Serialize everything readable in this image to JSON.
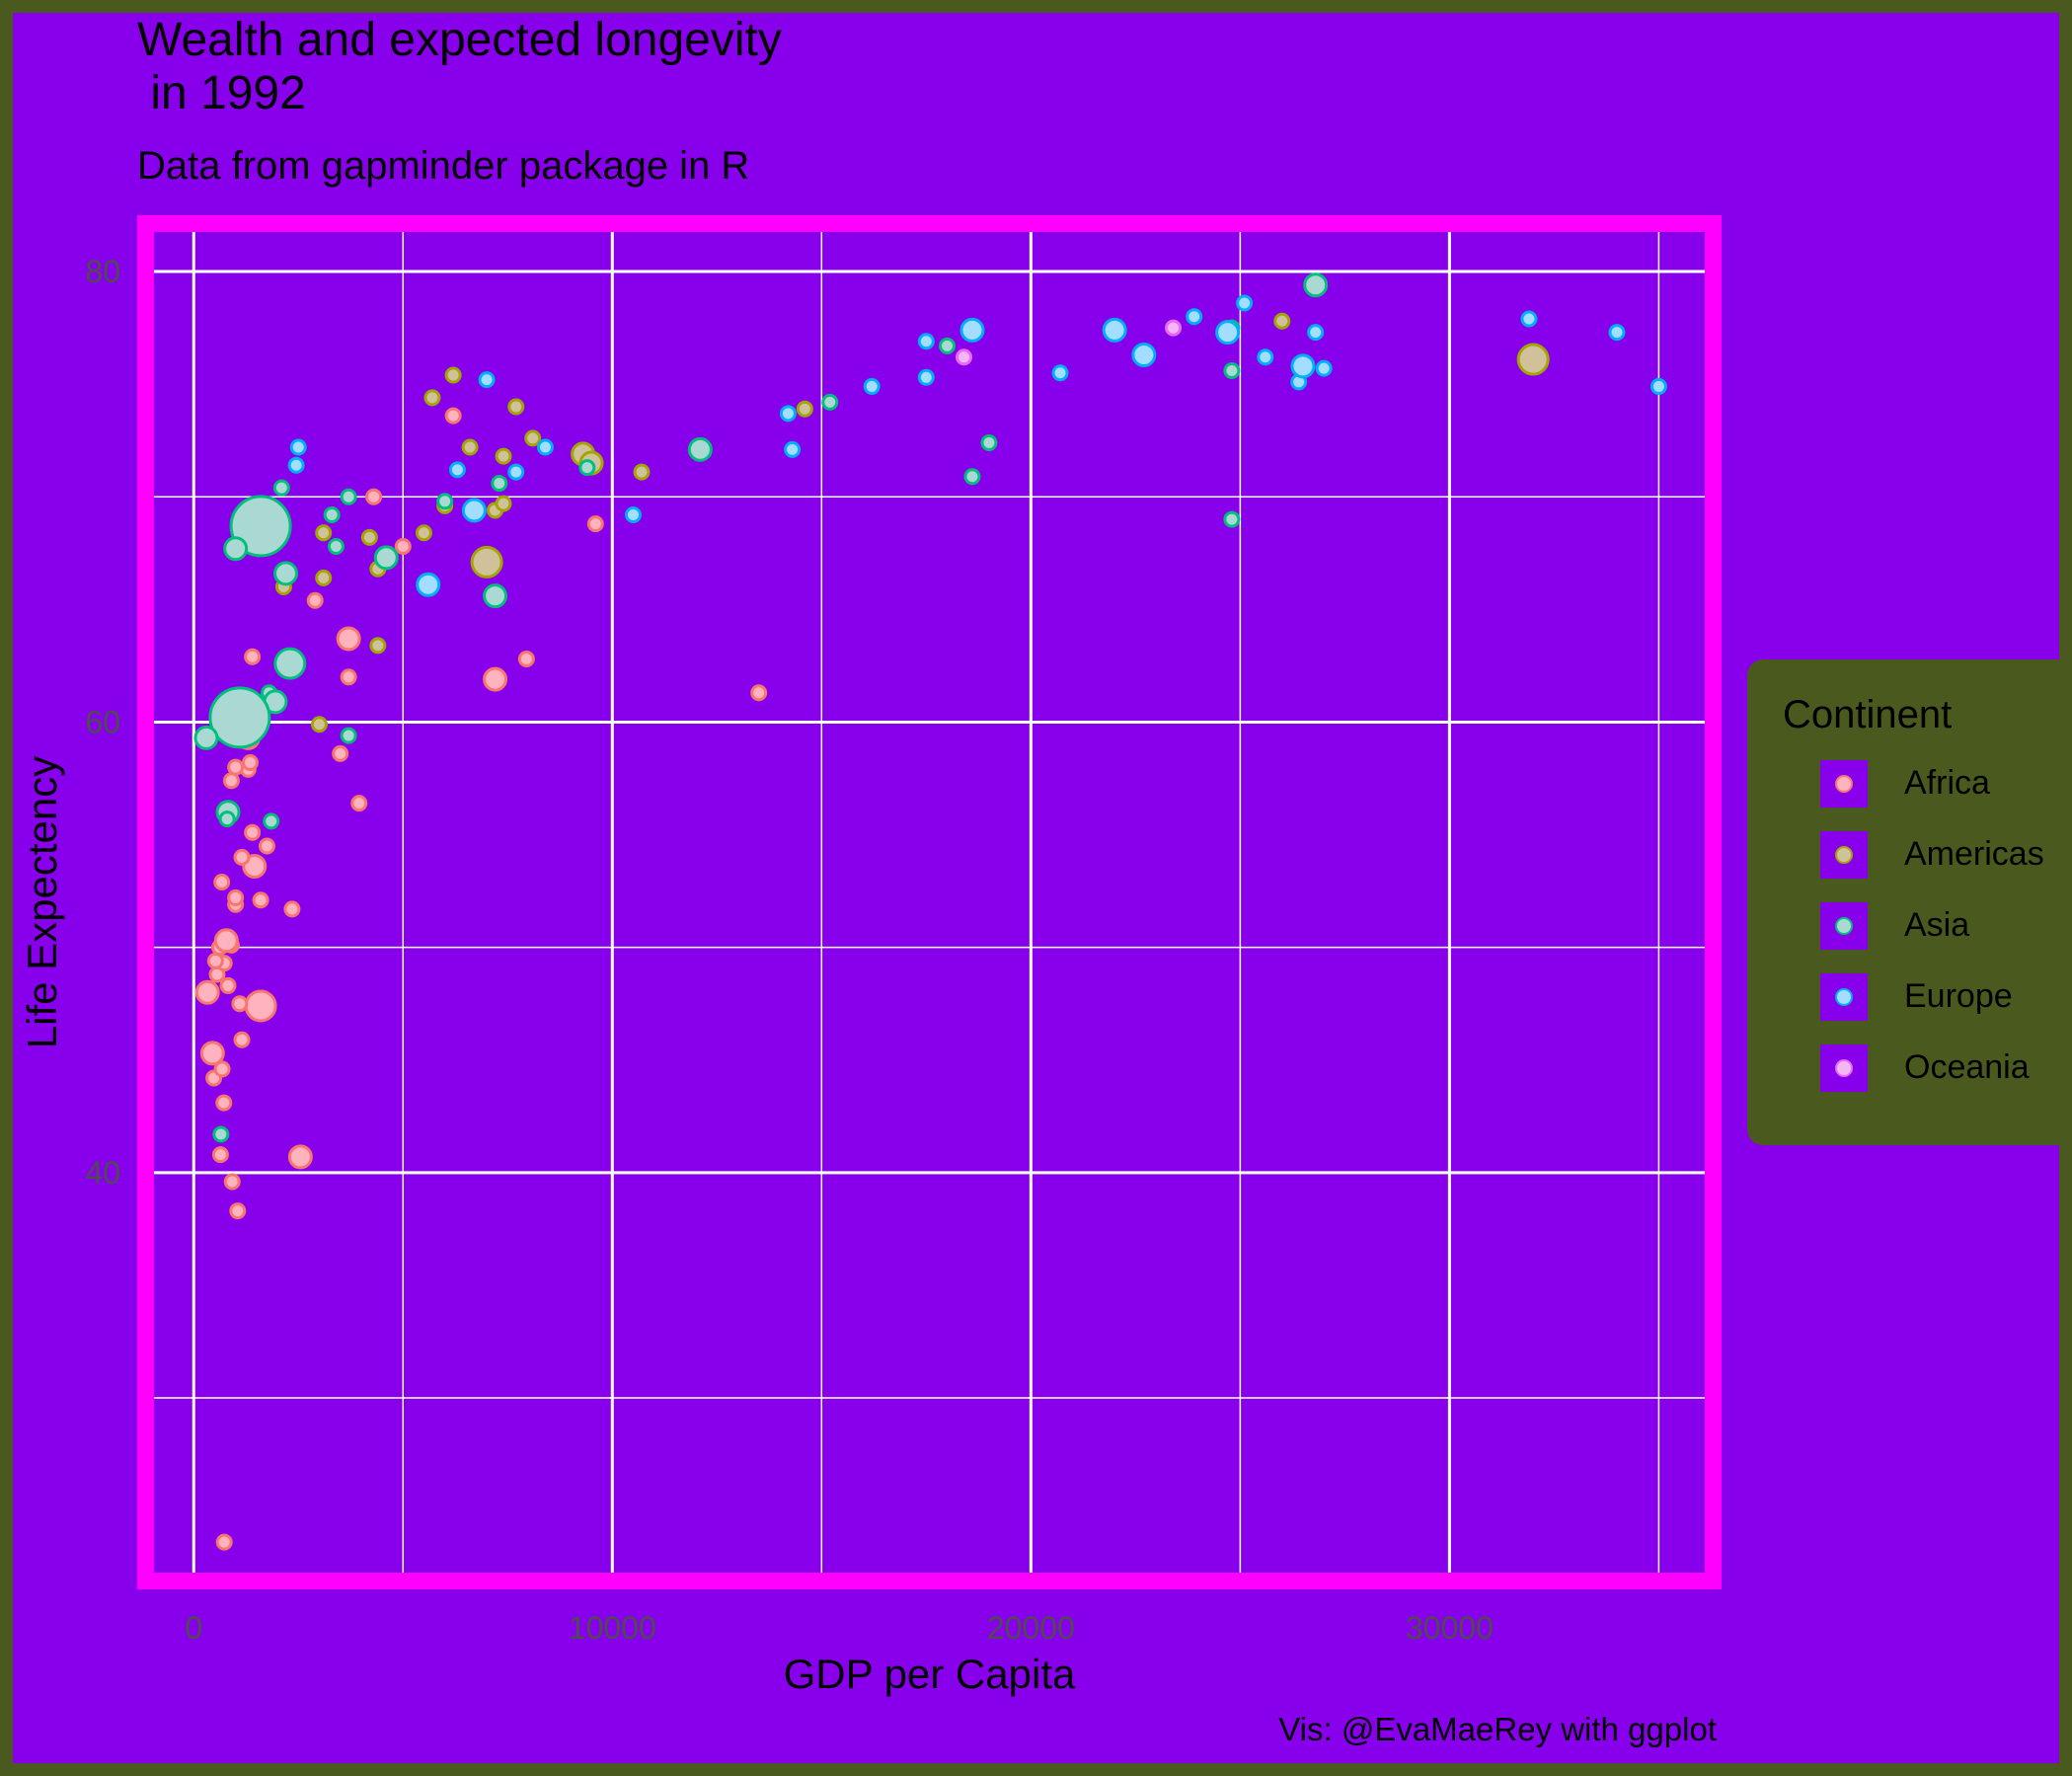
{
  "title": "Wealth and expected longevity\n in 1992",
  "subtitle": "Data from gapminder package in R",
  "caption": "Vis: @EvaMaeRey with ggplot",
  "colors": {
    "background": "#8800EB",
    "outer_border": "#4A5A1E",
    "panel_border": "#FF00FF",
    "grid": "#FFFFFF"
  },
  "legend": {
    "title": "Continent",
    "items": [
      {
        "label": "Africa",
        "fill": "#FFB3BE",
        "stroke": "#F8766D"
      },
      {
        "label": "Americas",
        "fill": "#D1C19A",
        "stroke": "#A3A500"
      },
      {
        "label": "Asia",
        "fill": "#A9D9D2",
        "stroke": "#00BF7D"
      },
      {
        "label": "Europe",
        "fill": "#A3DDFF",
        "stroke": "#00B0F6"
      },
      {
        "label": "Oceania",
        "fill": "#F3B8F3",
        "stroke": "#E76BF3"
      }
    ]
  },
  "chart_data": {
    "type": "scatter",
    "title": "Wealth and expected longevity\n in 1992",
    "subtitle": "Data from gapminder package in R",
    "xlabel": "GDP per Capita",
    "ylabel": "Life Expectency",
    "xlim": [
      -1350,
      36500
    ],
    "ylim": [
      21.5,
      82.5
    ],
    "x_ticks": [
      0,
      10000,
      20000,
      30000
    ],
    "y_ticks": [
      40,
      60,
      80
    ],
    "grid": true,
    "legend_position": "right",
    "series": [
      {
        "name": "Africa",
        "points": [
          [
            730,
            23.6,
            1
          ],
          [
            640,
            40.8,
            1
          ],
          [
            920,
            39.6,
            1
          ],
          [
            1050,
            38.3,
            1
          ],
          [
            2550,
            40.7,
            2
          ],
          [
            480,
            44.2,
            1
          ],
          [
            680,
            44.6,
            1
          ],
          [
            720,
            43.1,
            1
          ],
          [
            450,
            45.3,
            2
          ],
          [
            1150,
            45.9,
            1
          ],
          [
            1600,
            47.4,
            3
          ],
          [
            1100,
            47.5,
            1
          ],
          [
            330,
            48.0,
            2
          ],
          [
            820,
            48.3,
            1
          ],
          [
            560,
            48.8,
            1
          ],
          [
            730,
            49.3,
            1
          ],
          [
            520,
            49.4,
            1
          ],
          [
            900,
            50.1,
            1
          ],
          [
            620,
            50.0,
            1
          ],
          [
            780,
            50.3,
            2
          ],
          [
            1000,
            51.9,
            1
          ],
          [
            1000,
            52.2,
            1
          ],
          [
            1600,
            52.1,
            1
          ],
          [
            2350,
            51.7,
            1
          ],
          [
            670,
            52.9,
            1
          ],
          [
            1450,
            53.6,
            2
          ],
          [
            1150,
            54.0,
            1
          ],
          [
            1750,
            54.5,
            1
          ],
          [
            1400,
            55.1,
            1
          ],
          [
            3950,
            56.4,
            1
          ],
          [
            900,
            57.4,
            1
          ],
          [
            1300,
            57.9,
            1
          ],
          [
            1350,
            58.2,
            1
          ],
          [
            1000,
            58.0,
            1
          ],
          [
            3500,
            58.6,
            1
          ],
          [
            1300,
            59.3,
            2
          ],
          [
            900,
            59.7,
            1
          ],
          [
            650,
            60.4,
            1
          ],
          [
            13500,
            61.3,
            1
          ],
          [
            3700,
            62.0,
            1
          ],
          [
            7200,
            61.9,
            2
          ],
          [
            1400,
            62.9,
            1
          ],
          [
            7950,
            62.8,
            1
          ],
          [
            3700,
            63.7,
            2
          ],
          [
            2900,
            65.4,
            1
          ],
          [
            9600,
            68.8,
            1
          ],
          [
            5000,
            67.8,
            1
          ],
          [
            4300,
            70.0,
            1
          ],
          [
            6200,
            73.6,
            1
          ]
        ]
      },
      {
        "name": "Americas",
        "points": [
          [
            3000,
            59.9,
            1
          ],
          [
            5700,
            74.4,
            1
          ],
          [
            6200,
            75.4,
            1
          ],
          [
            7700,
            74.0,
            1
          ],
          [
            8100,
            72.6,
            1
          ],
          [
            6600,
            72.2,
            1
          ],
          [
            7400,
            71.8,
            1
          ],
          [
            9300,
            71.9,
            2
          ],
          [
            9500,
            71.5,
            2
          ],
          [
            10700,
            71.1,
            1
          ],
          [
            6000,
            69.6,
            1
          ],
          [
            7200,
            69.4,
            1
          ],
          [
            7400,
            69.7,
            1
          ],
          [
            3100,
            68.4,
            1
          ],
          [
            4200,
            68.2,
            1
          ],
          [
            5500,
            68.4,
            1
          ],
          [
            4400,
            66.8,
            1
          ],
          [
            3100,
            66.4,
            1
          ],
          [
            2150,
            66.0,
            1
          ],
          [
            7000,
            67.1,
            3
          ],
          [
            4400,
            63.4,
            1
          ],
          [
            14600,
            73.9,
            1
          ],
          [
            26000,
            77.8,
            1
          ],
          [
            32000,
            76.1,
            3
          ]
        ]
      },
      {
        "name": "Asia",
        "points": [
          [
            1600,
            68.7,
            6
          ],
          [
            1000,
            67.7,
            2
          ],
          [
            2200,
            66.6,
            2
          ],
          [
            2100,
            70.4,
            1
          ],
          [
            3300,
            69.2,
            1
          ],
          [
            3700,
            70.0,
            1
          ],
          [
            3400,
            67.8,
            1
          ],
          [
            4600,
            67.3,
            2
          ],
          [
            2300,
            62.6,
            3
          ],
          [
            1800,
            61.3,
            1
          ],
          [
            1950,
            60.9,
            2
          ],
          [
            1100,
            60.2,
            6
          ],
          [
            300,
            59.3,
            2
          ],
          [
            3700,
            59.4,
            1
          ],
          [
            820,
            56.0,
            2
          ],
          [
            800,
            55.7,
            1
          ],
          [
            1850,
            55.6,
            1
          ],
          [
            650,
            41.7,
            1
          ],
          [
            6000,
            69.8,
            1
          ],
          [
            7300,
            70.6,
            1
          ],
          [
            7200,
            65.6,
            2
          ],
          [
            9400,
            71.3,
            1
          ],
          [
            12100,
            72.1,
            2
          ],
          [
            15200,
            74.2,
            1
          ],
          [
            18000,
            76.7,
            1
          ],
          [
            18600,
            70.9,
            1
          ],
          [
            19000,
            72.4,
            1
          ],
          [
            24800,
            69.0,
            1
          ],
          [
            24800,
            75.6,
            1
          ],
          [
            24800,
            77.5,
            1
          ],
          [
            26800,
            79.4,
            2
          ]
        ]
      },
      {
        "name": "Europe",
        "points": [
          [
            2500,
            72.2,
            1
          ],
          [
            2450,
            71.4,
            1
          ],
          [
            6300,
            71.2,
            1
          ],
          [
            7700,
            71.1,
            1
          ],
          [
            8400,
            72.2,
            1
          ],
          [
            7000,
            75.2,
            1
          ],
          [
            6700,
            69.4,
            2
          ],
          [
            5600,
            66.1,
            2
          ],
          [
            10500,
            69.2,
            1
          ],
          [
            14200,
            73.7,
            1
          ],
          [
            14300,
            72.1,
            1
          ],
          [
            16200,
            74.9,
            1
          ],
          [
            17500,
            75.3,
            1
          ],
          [
            17500,
            76.9,
            1
          ],
          [
            18600,
            77.4,
            2
          ],
          [
            20700,
            75.5,
            1
          ],
          [
            22000,
            77.4,
            2
          ],
          [
            22700,
            76.3,
            2
          ],
          [
            23900,
            78.0,
            1
          ],
          [
            24700,
            77.3,
            2
          ],
          [
            25100,
            78.6,
            1
          ],
          [
            25600,
            76.2,
            1
          ],
          [
            26400,
            75.1,
            1
          ],
          [
            26500,
            75.8,
            2
          ],
          [
            26800,
            77.3,
            1
          ],
          [
            27000,
            75.7,
            1
          ],
          [
            31900,
            77.9,
            1
          ],
          [
            34000,
            77.3,
            1
          ],
          [
            35000,
            74.9,
            1
          ]
        ]
      },
      {
        "name": "Oceania",
        "points": [
          [
            18400,
            76.2,
            1
          ],
          [
            23400,
            77.5,
            1
          ]
        ]
      }
    ]
  }
}
